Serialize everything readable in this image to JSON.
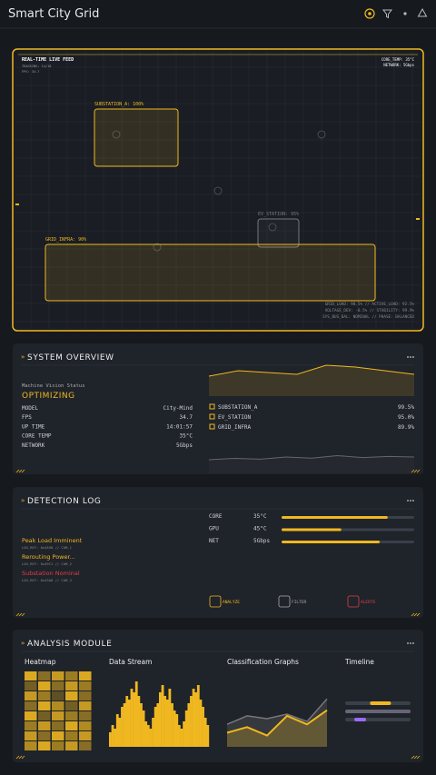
{
  "header": {
    "title": "Smart City Grid"
  },
  "live_feed": {
    "title": "REAL-TIME LIVE FEED",
    "meta": [
      "TRACKING: 14/18",
      "FPS: 34.7"
    ],
    "status": [
      "CORE_TEMP: 35°C",
      "NETWORK: 5Gbps"
    ],
    "zones": [
      "SUBSTATION_A: 100%",
      "EV_STATION: 95%",
      "GRID_INFRA: 90%"
    ],
    "footer": [
      "GRID_LOAD: 98.5% // ACTIVE_LOAD: 92.5%",
      "VOLTAGE_DEV: -0.5% // STABILITY: 99.9%",
      "SYS_BUS_BAL: NOMINAL // PHASE: BALANCED"
    ]
  },
  "overview": {
    "title": "SYSTEM OVERVIEW",
    "status_label": "Machine Vision Status",
    "status": "OPTIMIZING",
    "specs": [
      [
        "MODEL",
        "City-Mind"
      ],
      [
        "FPS",
        "34.7"
      ],
      [
        "UP TIME",
        "14:01:57"
      ],
      [
        "CORE TEMP",
        "35°C"
      ],
      [
        "NETWORK",
        "5Gbps"
      ]
    ],
    "legend": [
      [
        "SUBSTATION_A",
        "99.5%"
      ],
      [
        "EV_STATION",
        "95.0%"
      ],
      [
        "GRID_INFRA",
        "89.9%"
      ]
    ],
    "trend": [
      40,
      55,
      50,
      45,
      70,
      65,
      55,
      45
    ],
    "trend2": [
      30,
      35,
      32,
      40,
      36,
      45,
      38,
      42,
      40
    ]
  },
  "log": {
    "title": "DETECTION LOG",
    "entries": [
      {
        "title": "Peak Load Imminent",
        "ref": "LOG_REF: 0x4A98 // CAM_1"
      },
      {
        "title": "Rerouting Power...",
        "ref": "LOG_REF: 0x49C1 // CAM_2"
      },
      {
        "title": "Substation Nominal",
        "ref": "LOG_REF: 0x43A8 // CAM_3"
      }
    ],
    "metrics": [
      {
        "name": "CORE",
        "value": "35°C",
        "level": 80
      },
      {
        "name": "GPU",
        "value": "45°C",
        "level": 45
      },
      {
        "name": "NET",
        "value": "5Gbps",
        "level": 74
      }
    ],
    "buttons": [
      "ANALYZE",
      "FILTER",
      "ALERTS"
    ]
  },
  "analysis": {
    "title": "ANALYSIS MODULE",
    "sections": [
      "Heatmap",
      "Data Stream",
      "Classification Graphs",
      "Timeline"
    ],
    "heatmap": [
      0.9,
      0.5,
      0.8,
      0.6,
      0.9,
      0.4,
      0.9,
      0.5,
      0.8,
      0.6,
      0.8,
      0.6,
      0.3,
      0.9,
      0.5,
      0.5,
      0.9,
      0.7,
      0.4,
      0.8,
      0.9,
      0.4,
      0.8,
      0.6,
      0.5,
      0.6,
      0.8,
      0.5,
      0.9,
      0.7,
      0.8,
      0.5,
      0.9,
      0.6,
      0.8,
      0.7,
      0.9,
      0.6,
      0.8,
      0.5
    ],
    "stream": [
      20,
      30,
      25,
      45,
      40,
      55,
      60,
      70,
      65,
      80,
      75,
      90,
      70,
      60,
      50,
      35,
      30,
      25,
      40,
      55,
      60,
      75,
      85,
      70,
      65,
      80,
      60,
      50,
      45,
      30,
      25,
      35,
      50,
      60,
      70,
      80,
      75,
      85,
      65,
      55,
      40,
      30
    ],
    "classification": [
      [
        40,
        55,
        50,
        58,
        45,
        85
      ],
      [
        25,
        35,
        20,
        55,
        40,
        65
      ]
    ],
    "timeline": [
      [
        38,
        70
      ],
      [
        0,
        100
      ],
      [
        14,
        32
      ]
    ]
  }
}
